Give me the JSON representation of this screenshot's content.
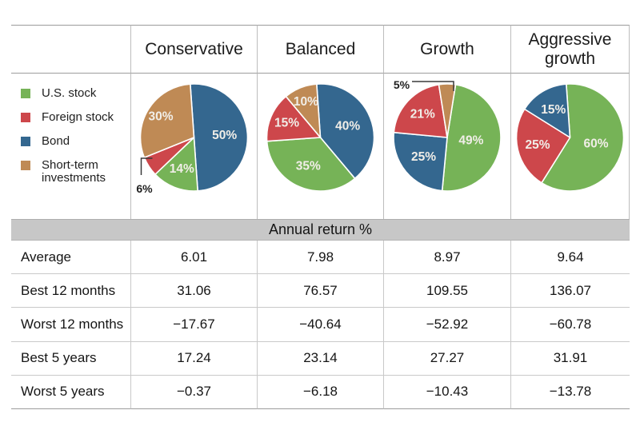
{
  "banner": {
    "title": "Annual return %"
  },
  "legend": [
    {
      "label": "U.S. stock",
      "color": "#76b357"
    },
    {
      "label": "Foreign stock",
      "color": "#cd474b"
    },
    {
      "label": "Bond",
      "color": "#34678f"
    },
    {
      "label": "Short-term investments",
      "color": "#bf8a55"
    }
  ],
  "colors": {
    "us_stock": "#76b357",
    "foreign_stock": "#cd474b",
    "bond": "#34678f",
    "short_term": "#bf8a55",
    "banner_gray": "#c7c7c7"
  },
  "chart_data": [
    {
      "type": "pie",
      "title": "Conservative",
      "start_angle": -4,
      "slices": [
        {
          "label": "Bond",
          "value": 50,
          "display": "50%",
          "color": "#34678f",
          "lf": 0.57
        },
        {
          "label": "U.S. stock",
          "value": 14,
          "display": "14%",
          "color": "#76b357",
          "lf": 0.63
        },
        {
          "label": "Foreign stock",
          "value": 6,
          "display": "6%",
          "color": "#cd474b",
          "external": true
        },
        {
          "label": "Short-term investments",
          "value": 30,
          "display": "30%",
          "color": "#bf8a55",
          "lf": 0.73
        }
      ],
      "callout": {
        "text": "6%",
        "points": [
          [
            -52,
            26
          ],
          [
            -66,
            26
          ],
          [
            -66,
            47
          ]
        ],
        "text_pos": [
          -62,
          64
        ]
      }
    },
    {
      "type": "pie",
      "title": "Balanced",
      "start_angle": -4,
      "slices": [
        {
          "label": "Bond",
          "value": 40,
          "display": "40%",
          "color": "#34678f",
          "lf": 0.55
        },
        {
          "label": "U.S. stock",
          "value": 35,
          "display": "35%",
          "color": "#76b357",
          "lf": 0.58
        },
        {
          "label": "Foreign stock",
          "value": 15,
          "display": "15%",
          "color": "#cd474b",
          "lf": 0.68
        },
        {
          "label": "Short-term investments",
          "value": 10,
          "display": "10%",
          "color": "#bf8a55",
          "lf": 0.72
        }
      ]
    },
    {
      "type": "pie",
      "title": "Growth",
      "start_angle": 9,
      "slices": [
        {
          "label": "U.S. stock",
          "value": 49,
          "display": "49%",
          "color": "#76b357",
          "lf": 0.45
        },
        {
          "label": "Bond",
          "value": 25,
          "display": "25%",
          "color": "#34678f",
          "lf": 0.57
        },
        {
          "label": "Foreign stock",
          "value": 21,
          "display": "21%",
          "color": "#cd474b",
          "lf": 0.63
        },
        {
          "label": "Short-term investments",
          "value": 5,
          "display": "5%",
          "color": "#bf8a55",
          "external": true
        }
      ],
      "callout": {
        "text": "5%",
        "points": [
          [
            8,
            -58
          ],
          [
            8,
            -70
          ],
          [
            -44,
            -70
          ]
        ],
        "text_pos": [
          -57,
          -66
        ]
      }
    },
    {
      "type": "pie",
      "title": "Aggressive growth",
      "start_angle": -4,
      "slices": [
        {
          "label": "U.S. stock",
          "value": 60,
          "display": "60%",
          "color": "#76b357",
          "lf": 0.5
        },
        {
          "label": "Foreign stock",
          "value": 25,
          "display": "25%",
          "color": "#cd474b",
          "lf": 0.62
        },
        {
          "label": "Bond",
          "value": 15,
          "display": "15%",
          "color": "#34678f",
          "lf": 0.6
        }
      ]
    },
    {
      "type": "table",
      "title": "Annual return %",
      "columns": [
        "",
        "Conservative",
        "Balanced",
        "Growth",
        "Aggressive growth"
      ],
      "rows": [
        {
          "label": "Average",
          "values": [
            "6.01",
            "7.98",
            "8.97",
            "9.64"
          ]
        },
        {
          "label": "Best 12 months",
          "values": [
            "31.06",
            "76.57",
            "109.55",
            "136.07"
          ]
        },
        {
          "label": "Worst 12 months",
          "values": [
            "−17.67",
            "−40.64",
            "−52.92",
            "−60.78"
          ]
        },
        {
          "label": "Best 5 years",
          "values": [
            "17.24",
            "23.14",
            "27.27",
            "31.91"
          ]
        },
        {
          "label": "Worst 5 years",
          "values": [
            "−0.37",
            "−6.18",
            "−10.43",
            "−13.78"
          ]
        }
      ]
    }
  ]
}
